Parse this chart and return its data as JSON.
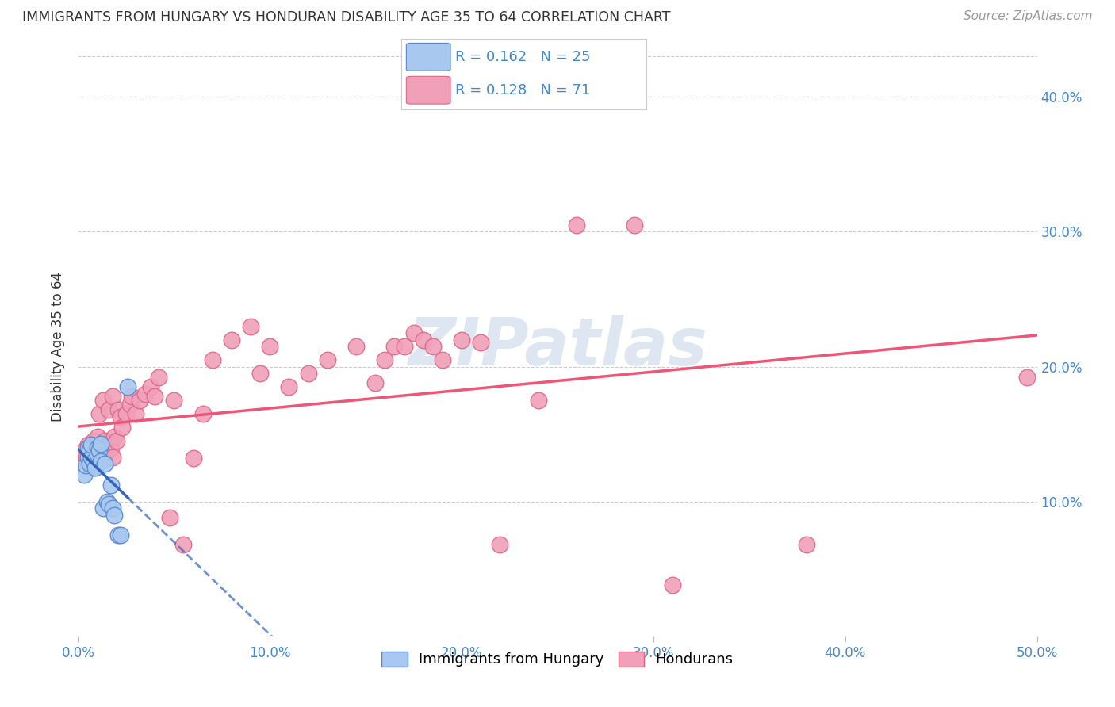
{
  "title": "IMMIGRANTS FROM HUNGARY VS HONDURAN DISABILITY AGE 35 TO 64 CORRELATION CHART",
  "source": "Source: ZipAtlas.com",
  "ylabel": "Disability Age 35 to 64",
  "xlim": [
    0.0,
    0.5
  ],
  "ylim": [
    0.0,
    0.43
  ],
  "yticks_right": [
    0.1,
    0.2,
    0.3,
    0.4
  ],
  "ytick_labels_right": [
    "10.0%",
    "20.0%",
    "30.0%",
    "40.0%"
  ],
  "xtick_vals": [
    0.0,
    0.1,
    0.2,
    0.3,
    0.4,
    0.5
  ],
  "xtick_labels": [
    "0.0%",
    "10.0%",
    "20.0%",
    "30.0%",
    "40.0%",
    "50.0%"
  ],
  "grid_color": "#cccccc",
  "background_color": "#ffffff",
  "hungary_color": "#a8c8f0",
  "honduran_color": "#f0a0b8",
  "hungary_edge": "#5588cc",
  "honduran_edge": "#dd6688",
  "hungary_line_color": "#3366bb",
  "honduran_line_color": "#ee5577",
  "watermark_color": "#c8d8e8",
  "hungary_x": [
    0.003,
    0.004,
    0.005,
    0.005,
    0.006,
    0.006,
    0.007,
    0.007,
    0.008,
    0.009,
    0.01,
    0.01,
    0.011,
    0.012,
    0.012,
    0.013,
    0.014,
    0.015,
    0.016,
    0.017,
    0.018,
    0.019,
    0.021,
    0.022,
    0.026
  ],
  "hungary_y": [
    0.12,
    0.127,
    0.133,
    0.14,
    0.128,
    0.138,
    0.133,
    0.142,
    0.13,
    0.125,
    0.14,
    0.135,
    0.138,
    0.13,
    0.143,
    0.095,
    0.128,
    0.1,
    0.098,
    0.112,
    0.095,
    0.09,
    0.075,
    0.075,
    0.185
  ],
  "honduran_x": [
    0.003,
    0.004,
    0.005,
    0.005,
    0.006,
    0.007,
    0.007,
    0.008,
    0.008,
    0.009,
    0.009,
    0.01,
    0.01,
    0.011,
    0.011,
    0.012,
    0.012,
    0.013,
    0.013,
    0.014,
    0.015,
    0.016,
    0.016,
    0.017,
    0.018,
    0.018,
    0.019,
    0.02,
    0.021,
    0.022,
    0.023,
    0.025,
    0.027,
    0.028,
    0.03,
    0.032,
    0.035,
    0.038,
    0.04,
    0.042,
    0.048,
    0.05,
    0.055,
    0.06,
    0.065,
    0.07,
    0.08,
    0.09,
    0.095,
    0.1,
    0.11,
    0.12,
    0.13,
    0.145,
    0.155,
    0.16,
    0.165,
    0.17,
    0.175,
    0.18,
    0.185,
    0.19,
    0.2,
    0.21,
    0.22,
    0.24,
    0.26,
    0.29,
    0.31,
    0.38,
    0.495
  ],
  "honduran_y": [
    0.138,
    0.132,
    0.128,
    0.142,
    0.135,
    0.13,
    0.138,
    0.125,
    0.145,
    0.132,
    0.14,
    0.135,
    0.148,
    0.14,
    0.165,
    0.133,
    0.142,
    0.138,
    0.175,
    0.145,
    0.138,
    0.142,
    0.168,
    0.14,
    0.133,
    0.178,
    0.148,
    0.145,
    0.168,
    0.163,
    0.155,
    0.165,
    0.172,
    0.178,
    0.165,
    0.175,
    0.18,
    0.185,
    0.178,
    0.192,
    0.088,
    0.175,
    0.068,
    0.132,
    0.165,
    0.205,
    0.22,
    0.23,
    0.195,
    0.215,
    0.185,
    0.195,
    0.205,
    0.215,
    0.188,
    0.205,
    0.215,
    0.215,
    0.225,
    0.22,
    0.215,
    0.205,
    0.22,
    0.218,
    0.068,
    0.175,
    0.305,
    0.305,
    0.038,
    0.068,
    0.192
  ]
}
